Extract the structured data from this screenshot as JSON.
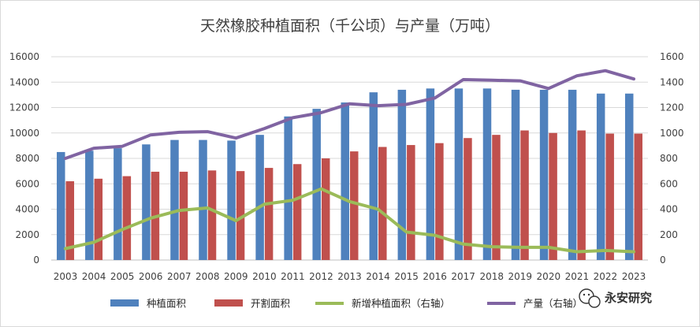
{
  "chart_data": {
    "type": "bar",
    "title": "天然橡胶种植面积（千公顷）与产量（万吨）",
    "categories": [
      "2003",
      "2004",
      "2005",
      "2006",
      "2007",
      "2008",
      "2009",
      "2010",
      "2011",
      "2012",
      "2013",
      "2014",
      "2015",
      "2016",
      "2017",
      "2018",
      "2019",
      "2020",
      "2021",
      "2022",
      "2023"
    ],
    "y_left": {
      "range": [
        0,
        16000
      ],
      "ticks": [
        "0",
        "2000",
        "4000",
        "6000",
        "8000",
        "10000",
        "12000",
        "14000",
        "16000"
      ]
    },
    "y_right": {
      "range": [
        0,
        1600
      ],
      "ticks": [
        "0",
        "200",
        "400",
        "600",
        "800",
        "1000",
        "1200",
        "1400",
        "1600"
      ]
    },
    "grid": true,
    "legend_position": "bottom",
    "series": [
      {
        "name": "种植面积",
        "kind": "bar",
        "axis": "left",
        "color": "#4f81bd",
        "values": [
          8500,
          8600,
          8800,
          9100,
          9450,
          9450,
          9400,
          9850,
          11300,
          11900,
          12400,
          13200,
          13400,
          13500,
          13500,
          13500,
          13400,
          13400,
          13400,
          13100,
          13100
        ]
      },
      {
        "name": "开割面积",
        "kind": "bar",
        "axis": "left",
        "color": "#c0504d",
        "values": [
          6200,
          6400,
          6600,
          6950,
          6950,
          7050,
          7000,
          7250,
          7550,
          8000,
          8550,
          8900,
          9050,
          9200,
          9600,
          9850,
          10200,
          10000,
          10200,
          9950,
          9950
        ]
      },
      {
        "name": "新增种植面积（右轴）",
        "kind": "line",
        "axis": "right",
        "color": "#9bbb59",
        "values": [
          90,
          140,
          240,
          330,
          390,
          410,
          310,
          440,
          470,
          560,
          460,
          400,
          220,
          195,
          125,
          105,
          100,
          100,
          65,
          75,
          65
        ]
      },
      {
        "name": "产量（右轴）",
        "kind": "line",
        "axis": "right",
        "color": "#8064a2",
        "values": [
          800,
          880,
          895,
          985,
          1005,
          1010,
          960,
          1035,
          1120,
          1160,
          1230,
          1215,
          1225,
          1275,
          1420,
          1415,
          1410,
          1350,
          1450,
          1490,
          1425
        ]
      }
    ]
  },
  "watermark": {
    "text": "永安研究",
    "icon": "wechat-icon"
  }
}
